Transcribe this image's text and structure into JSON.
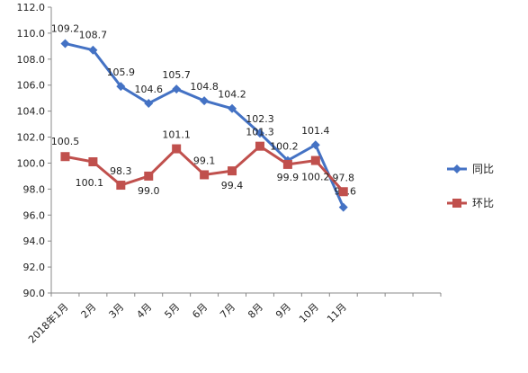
{
  "chart_data": {
    "type": "line",
    "title": "",
    "xlabel": "",
    "ylabel": "",
    "categories": [
      "2018年1月",
      "2月",
      "3月",
      "4月",
      "5月",
      "6月",
      "7月",
      "8月",
      "9月",
      "10月",
      "11月"
    ],
    "ylim": [
      90.0,
      112.0
    ],
    "yticks": [
      "90.0",
      "92.0",
      "94.0",
      "96.0",
      "98.0",
      "100.0",
      "102.0",
      "104.0",
      "106.0",
      "108.0",
      "110.0",
      "112.0"
    ],
    "grid": false,
    "legend_position": "right",
    "series": [
      {
        "name": "同比",
        "color": "#4472C4",
        "marker": "diamond",
        "values": [
          109.2,
          108.7,
          105.9,
          104.6,
          105.7,
          104.8,
          104.2,
          102.3,
          100.2,
          101.4,
          96.6
        ],
        "labels": [
          "109.2",
          "108.7",
          "105.9",
          "104.6",
          "105.7",
          "104.8",
          "104.2",
          "102.3",
          "100.2",
          "101.4",
          "96.6"
        ]
      },
      {
        "name": "环比",
        "color": "#C0504D",
        "marker": "square",
        "values": [
          100.5,
          100.1,
          98.3,
          99.0,
          101.1,
          99.1,
          99.4,
          101.3,
          99.9,
          100.2,
          97.8
        ],
        "labels": [
          "100.5",
          "100.1",
          "98.3",
          "99.0",
          "101.1",
          "99.1",
          "99.4",
          "101.3",
          "99.9",
          "100.2",
          "97.8"
        ]
      }
    ]
  }
}
